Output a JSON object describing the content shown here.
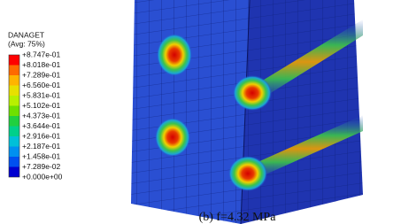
{
  "legend": {
    "title": "DANAGET",
    "subtitle": "(Avg: 75%)",
    "labels": [
      "+8.747e-01",
      "+8.018e-01",
      "+7.289e-01",
      "+6.560e-01",
      "+5.831e-01",
      "+5.102e-01",
      "+4.373e-01",
      "+3.644e-01",
      "+2.916e-01",
      "+2.187e-01",
      "+1.458e-01",
      "+7.289e-02",
      "+0.000e+00"
    ]
  },
  "caption": "(b) f=4.32 MPa"
}
